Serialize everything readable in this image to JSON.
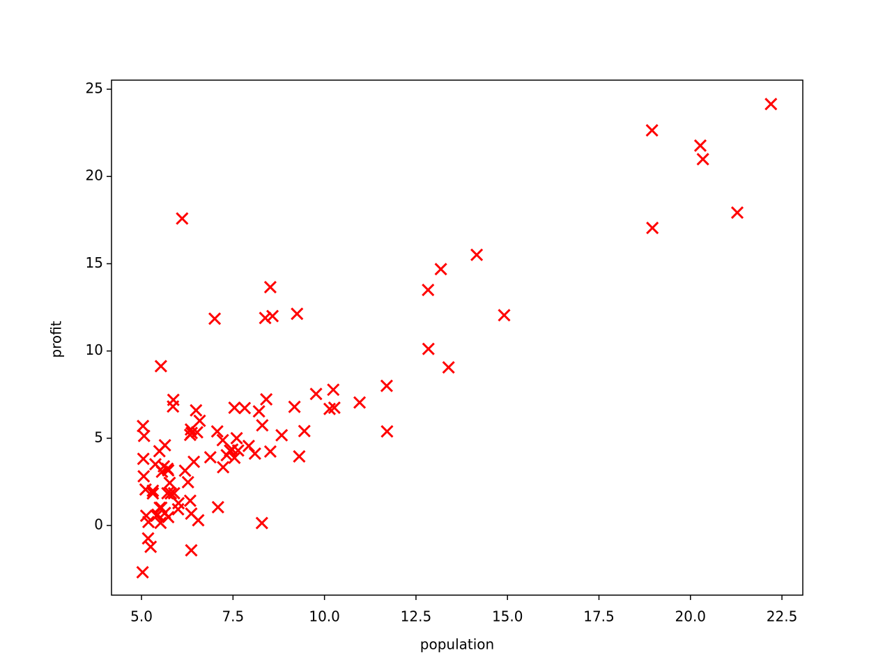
{
  "chart_data": {
    "type": "scatter",
    "x_label": "population",
    "y_label": "profit",
    "color": "#ff0000",
    "marker": "x",
    "x": [
      6.11,
      5.53,
      8.52,
      7.0,
      5.86,
      8.38,
      7.48,
      8.58,
      6.49,
      5.05,
      5.71,
      14.16,
      5.73,
      8.41,
      5.64,
      5.38,
      6.37,
      5.13,
      6.43,
      7.07,
      6.19,
      20.27,
      5.49,
      6.33,
      5.56,
      18.95,
      12.83,
      10.96,
      13.18,
      22.2,
      5.25,
      6.59,
      9.25,
      5.89,
      8.21,
      7.93,
      8.1,
      5.61,
      12.84,
      6.35,
      5.41,
      6.88,
      11.71,
      5.77,
      7.82,
      7.09,
      5.07,
      5.8,
      11.7,
      5.54,
      7.54,
      5.31,
      7.42,
      7.6,
      6.33,
      6.36,
      6.27,
      5.64,
      9.31,
      9.45,
      8.83,
      5.18,
      21.28,
      14.91,
      18.96,
      7.22,
      8.3,
      10.24,
      5.5,
      20.34,
      10.14,
      7.33,
      6.01,
      7.23,
      5.03,
      6.55,
      7.54,
      5.04,
      10.27,
      5.11,
      5.73,
      5.19,
      6.36,
      9.77,
      6.52,
      8.52,
      9.18,
      6.0,
      5.52,
      5.06,
      5.71,
      7.64,
      5.87,
      5.31,
      8.29,
      13.39,
      5.44
    ],
    "values": [
      17.59,
      9.13,
      13.66,
      11.85,
      6.82,
      11.89,
      4.35,
      12.0,
      6.6,
      3.82,
      3.25,
      15.51,
      3.16,
      7.23,
      0.72,
      3.51,
      5.3,
      0.56,
      3.65,
      5.39,
      3.14,
      21.77,
      4.26,
      5.19,
      3.08,
      22.64,
      13.5,
      7.05,
      14.69,
      24.15,
      -1.22,
      6.0,
      12.13,
      1.85,
      6.54,
      4.56,
      4.12,
      3.39,
      10.12,
      5.5,
      0.56,
      3.91,
      5.39,
      2.44,
      6.73,
      1.05,
      5.13,
      1.84,
      8.0,
      1.02,
      6.75,
      1.84,
      4.29,
      5.0,
      1.42,
      -1.42,
      2.48,
      4.6,
      3.96,
      5.41,
      5.17,
      -0.74,
      17.93,
      12.05,
      17.05,
      4.89,
      5.74,
      7.78,
      1.02,
      20.99,
      6.68,
      4.03,
      1.28,
      3.34,
      -2.68,
      0.3,
      3.88,
      5.7,
      6.75,
      2.06,
      0.48,
      0.2,
      0.68,
      7.54,
      5.34,
      4.24,
      6.8,
      0.93,
      0.15,
      2.82,
      1.85,
      4.3,
      7.2,
      1.99,
      0.14,
      9.06,
      0.62
    ],
    "xlim": [
      4.18,
      23.07
    ],
    "ylim": [
      -3.99,
      25.52
    ],
    "xticks": [
      {
        "value": 5,
        "label": "5.0"
      },
      7.5,
      {
        "value": 10,
        "label": "10.0"
      },
      12.5,
      {
        "value": 15,
        "label": "15.0"
      },
      17.5,
      {
        "value": 20,
        "label": "20.0"
      },
      22.5
    ],
    "yticks": [
      0,
      5,
      10,
      15,
      20,
      25
    ]
  }
}
